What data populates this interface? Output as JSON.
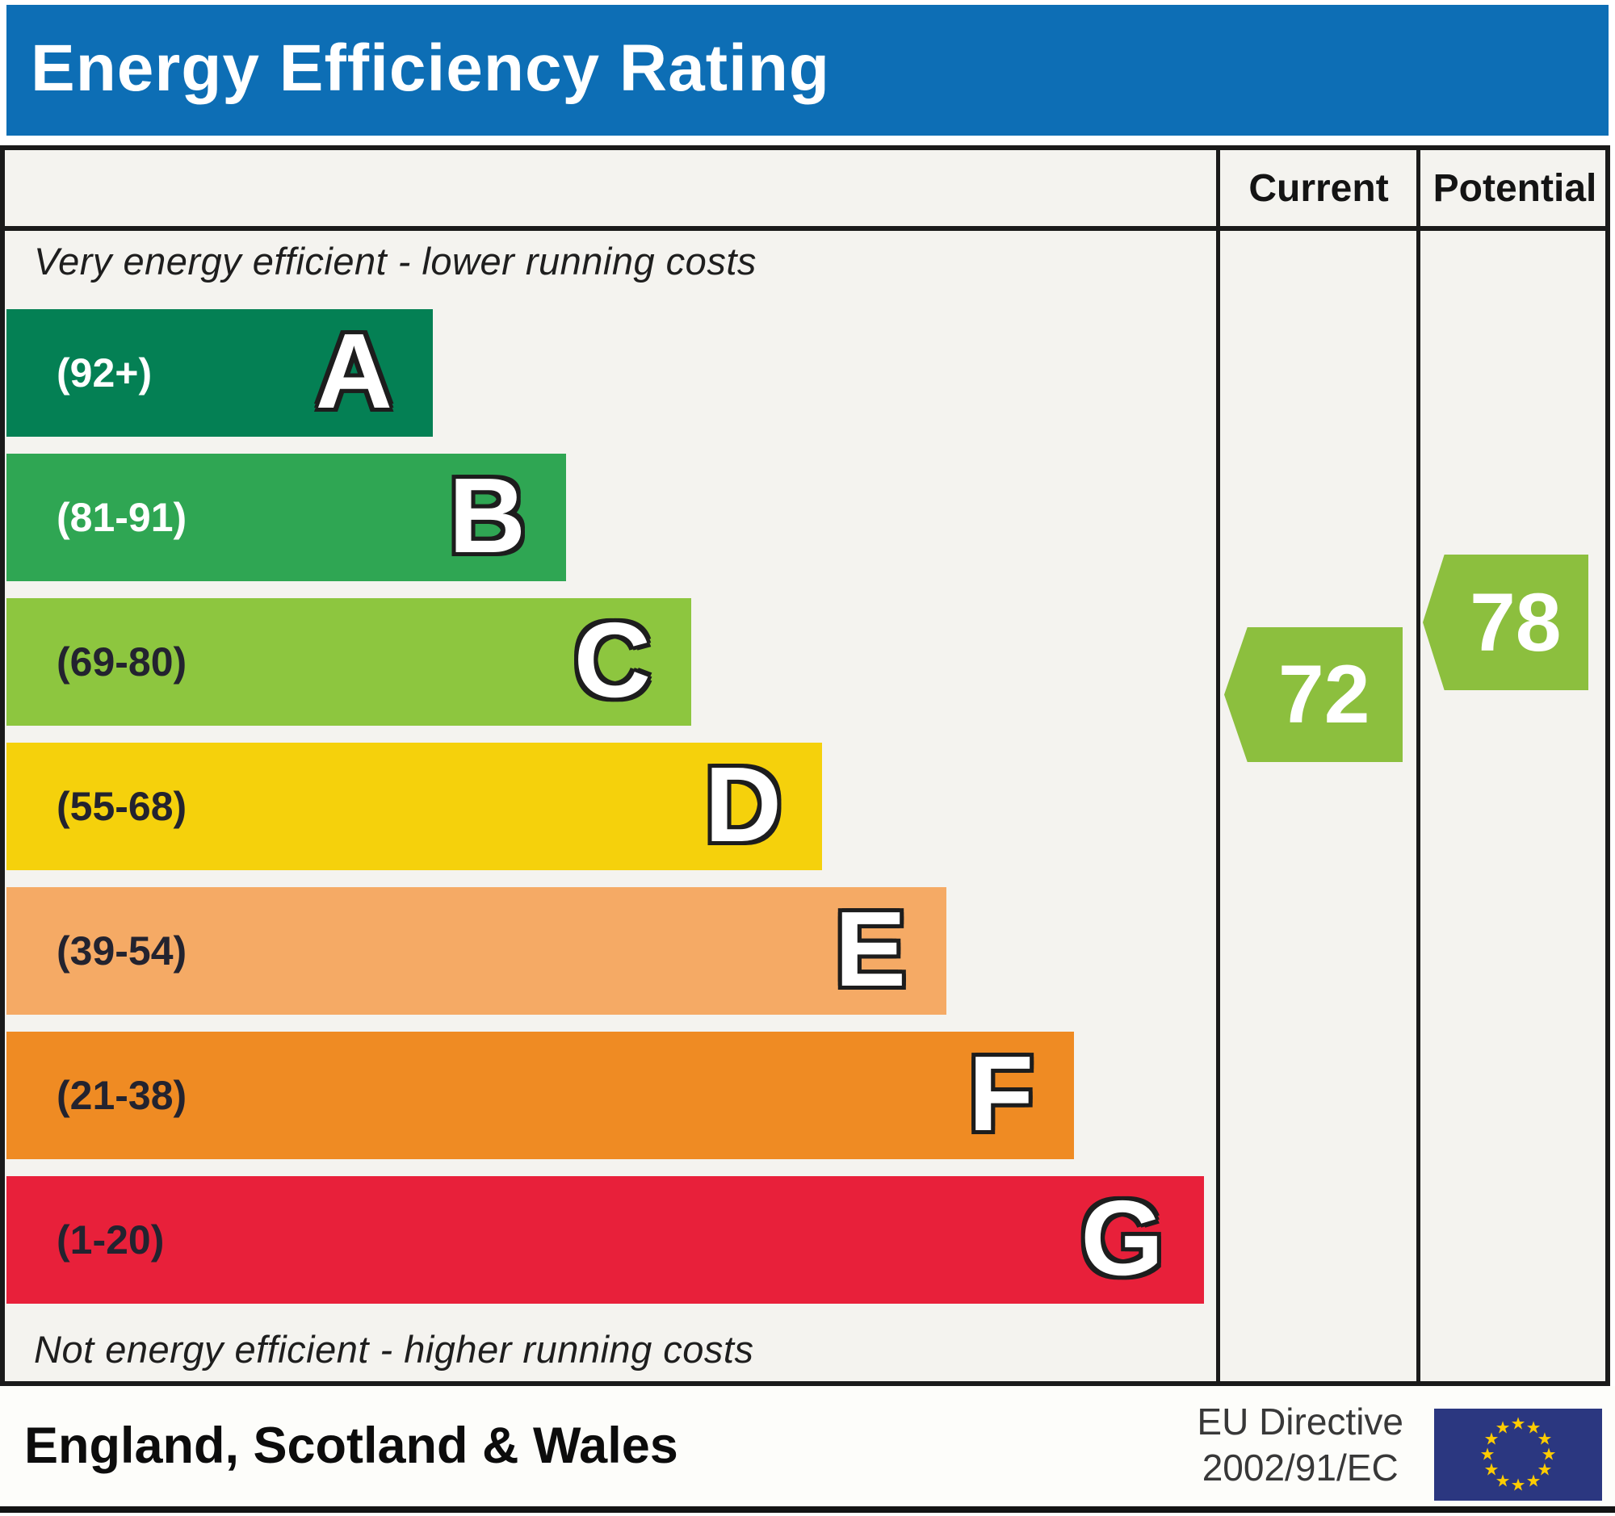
{
  "header": {
    "title": "Energy Efficiency Rating"
  },
  "columns": {
    "current": "Current",
    "potential": "Potential"
  },
  "notes": {
    "top": "Very energy efficient - lower running costs",
    "bottom": "Not energy efficient - higher running costs"
  },
  "chart_data": {
    "type": "bar",
    "title": "Energy Efficiency Rating",
    "categories": [
      "A",
      "B",
      "C",
      "D",
      "E",
      "F",
      "G"
    ],
    "bands": [
      {
        "letter": "A",
        "range_label": "(92+)",
        "range_min": 92,
        "range_max": 100,
        "color": "#048054",
        "label_color": "#ffffff",
        "bar_length_pct": 35.3
      },
      {
        "letter": "B",
        "range_label": "(81-91)",
        "range_min": 81,
        "range_max": 91,
        "color": "#2fa653",
        "label_color": "#ffffff",
        "bar_length_pct": 46.3
      },
      {
        "letter": "C",
        "range_label": "(69-80)",
        "range_min": 69,
        "range_max": 80,
        "color": "#8dc63f",
        "label_color": "#23232f",
        "bar_length_pct": 56.7
      },
      {
        "letter": "D",
        "range_label": "(55-68)",
        "range_min": 55,
        "range_max": 68,
        "color": "#f5d10c",
        "label_color": "#23232f",
        "bar_length_pct": 67.5
      },
      {
        "letter": "E",
        "range_label": "(39-54)",
        "range_min": 39,
        "range_max": 54,
        "color": "#f5aa65",
        "label_color": "#23232f",
        "bar_length_pct": 77.8
      },
      {
        "letter": "F",
        "range_label": "(21-38)",
        "range_min": 21,
        "range_max": 38,
        "color": "#ef8b23",
        "label_color": "#23232f",
        "bar_length_pct": 88.4
      },
      {
        "letter": "G",
        "range_label": "(1-20)",
        "range_min": 1,
        "range_max": 20,
        "color": "#e8203a",
        "label_color": "#23232f",
        "bar_length_pct": 99.1
      }
    ],
    "current": {
      "value": 72,
      "band": "C",
      "arrow_color": "#8cbf3e"
    },
    "potential": {
      "value": 78,
      "band": "C",
      "arrow_color": "#8cbf3e"
    },
    "legend_position": "none",
    "grid": false
  },
  "footer": {
    "region": "England, Scotland & Wales",
    "directive_line1": "EU Directive",
    "directive_line2": "2002/91/EC"
  },
  "colors": {
    "header_blue": "#0d6eb5",
    "table_background": "#f4f3ef",
    "border": "#1a1a1a",
    "eu_flag_blue": "#2b3780",
    "eu_star_yellow": "#ffcc00"
  }
}
